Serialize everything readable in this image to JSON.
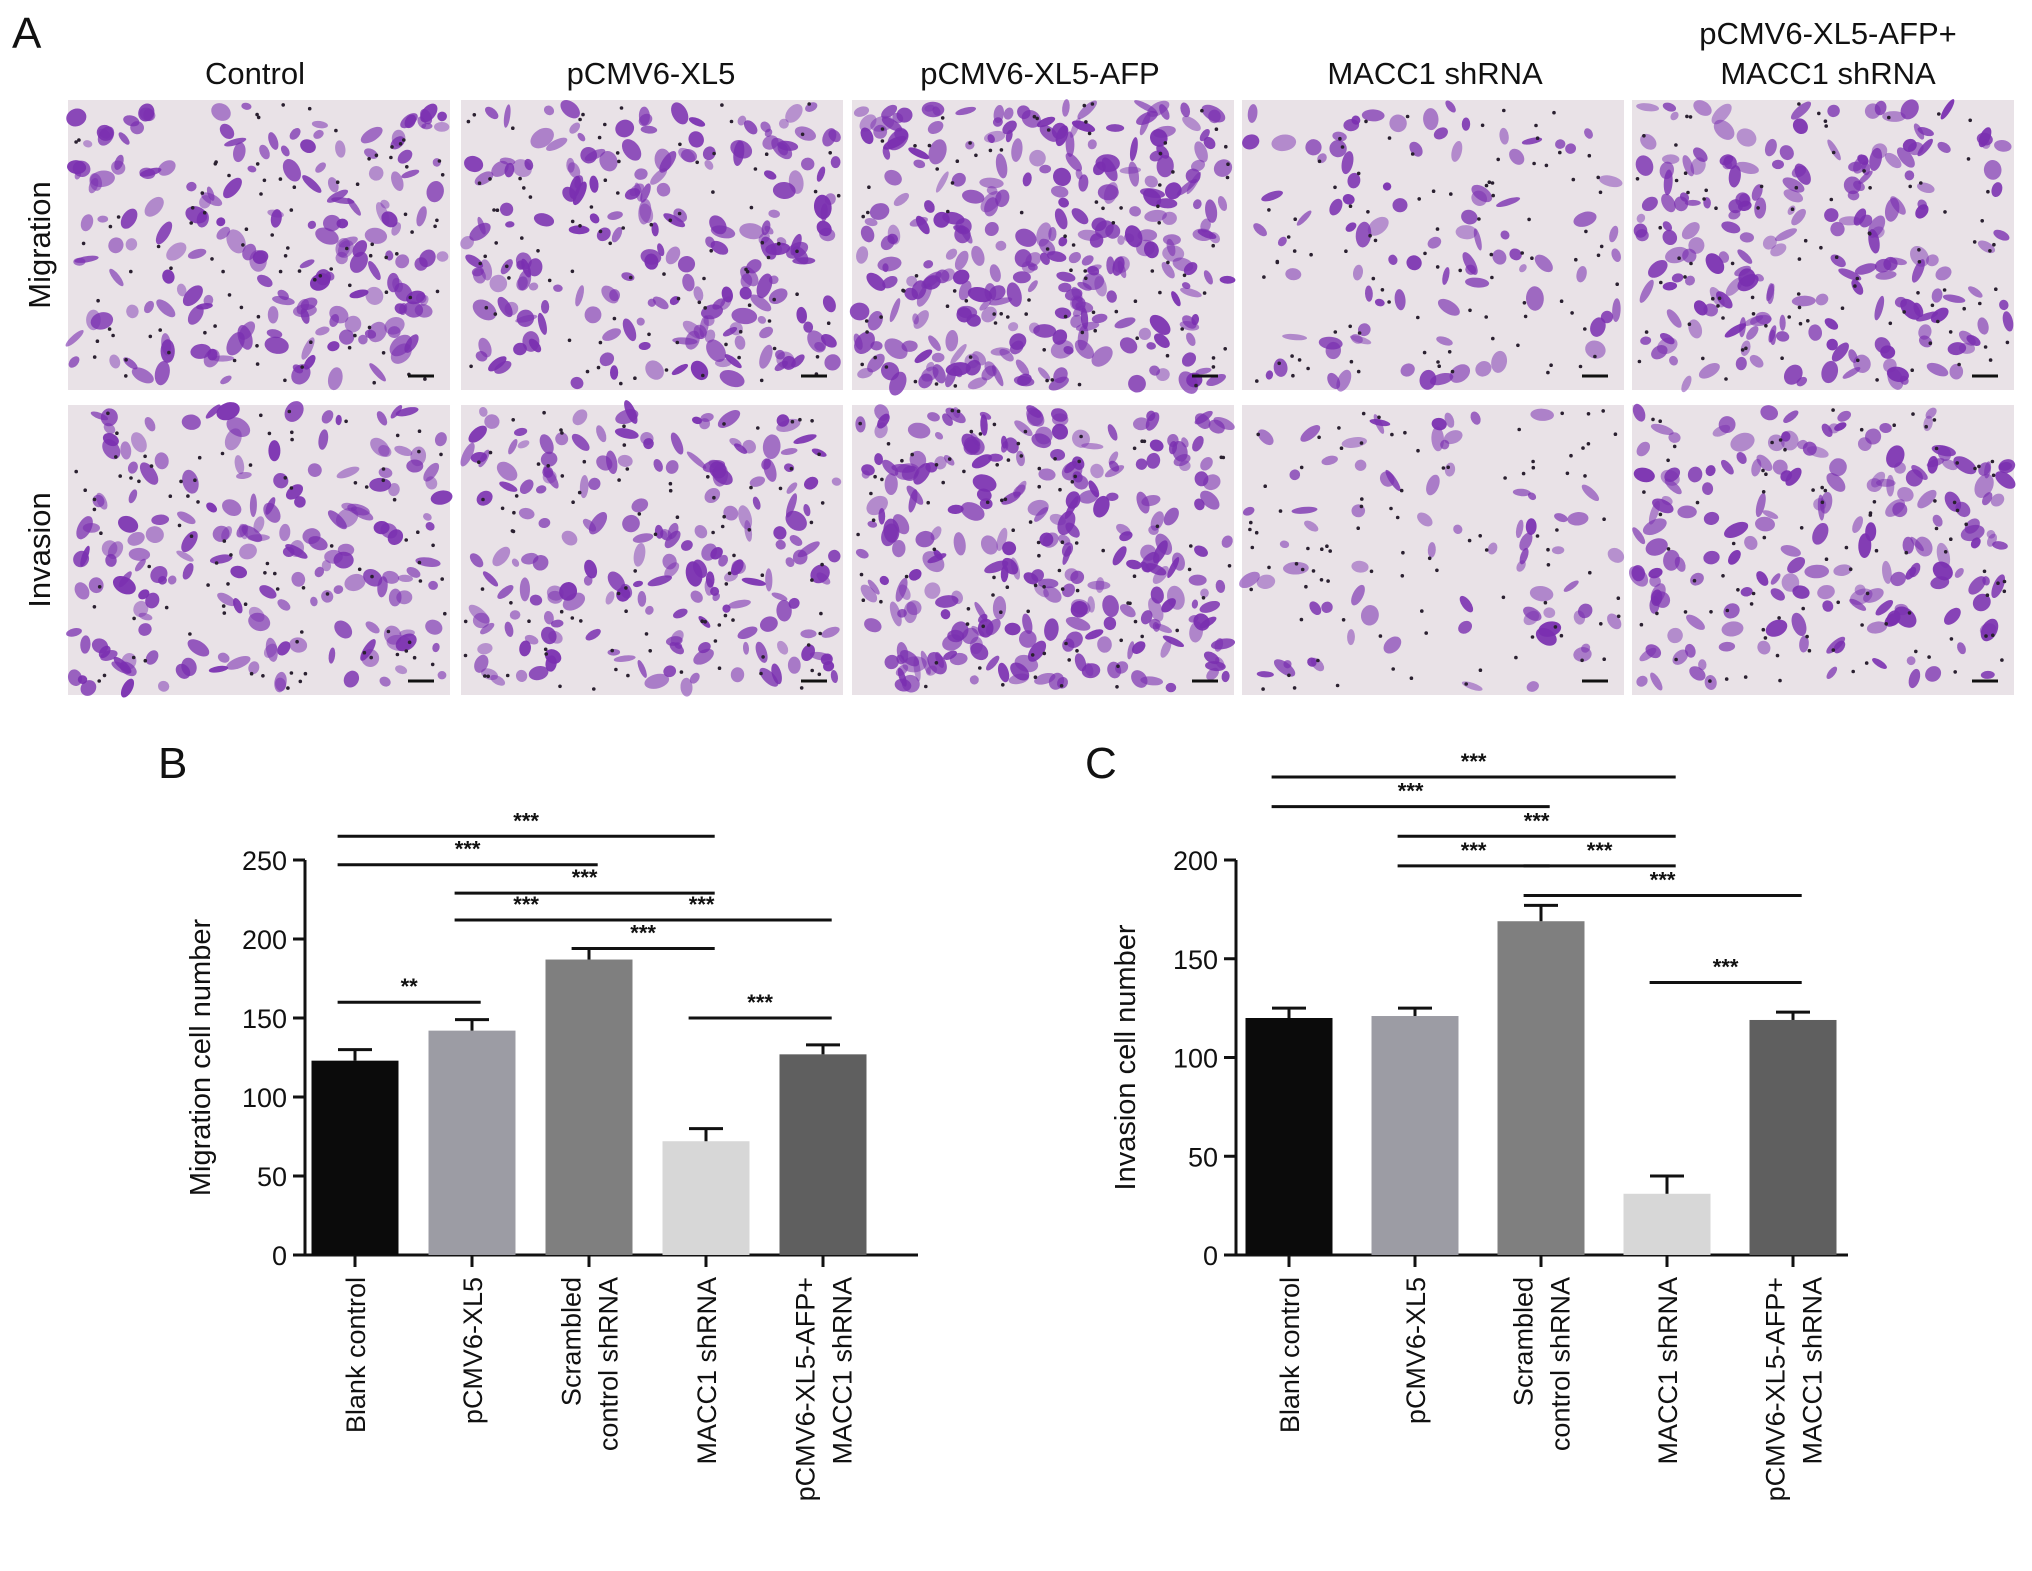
{
  "panel_labels": [
    "A",
    "B",
    "C"
  ],
  "panel_a": {
    "columns": [
      [
        "Control"
      ],
      [
        "pCMV6-XL5"
      ],
      [
        "pCMV6-XL5-AFP"
      ],
      [
        "MACC1 shRNA"
      ],
      [
        "pCMV6-XL5-AFP+",
        "MACC1 shRNA"
      ]
    ],
    "rows": [
      "Migration",
      "Invasion"
    ],
    "density": [
      [
        0.55,
        0.62,
        0.95,
        0.18,
        0.6
      ],
      [
        0.52,
        0.58,
        0.85,
        0.12,
        0.52
      ]
    ]
  },
  "colors": {
    "bars": [
      "#0b0b0b",
      "#9c9ca4",
      "#7f7f7f",
      "#d7d7d7",
      "#5f5f5f"
    ],
    "micro_bg": "#e9e2e7",
    "cell": "#7a2fb0"
  },
  "chart_data": [
    {
      "type": "bar",
      "panel": "B",
      "categories": [
        [
          "Blank control"
        ],
        [
          "pCMV6-XL5"
        ],
        [
          "Scrambled",
          "control shRNA"
        ],
        [
          "MACC1 shRNA"
        ],
        [
          "pCMV6-XL5-AFP+",
          "MACC1 shRNA"
        ]
      ],
      "values": [
        123,
        142,
        187,
        72,
        127
      ],
      "errors": [
        7,
        7,
        7,
        8,
        6
      ],
      "ylabel": "Migration cell number",
      "ylim": [
        0,
        250
      ],
      "yticks": [
        0,
        50,
        100,
        150,
        200,
        250
      ],
      "comparisons": [
        {
          "from": 0,
          "to": 3,
          "label": "***",
          "level": 265
        },
        {
          "from": 0,
          "to": 2,
          "label": "***",
          "level": 247
        },
        {
          "from": 1,
          "to": 3,
          "label": "***",
          "level": 229
        },
        {
          "from": 1,
          "to": 2,
          "label": "***",
          "level": 212
        },
        {
          "from": 2,
          "to": 4,
          "label": "***",
          "level": 212
        },
        {
          "from": 2,
          "to": 3,
          "label": "***",
          "level": 194
        },
        {
          "from": 0,
          "to": 1,
          "label": "**",
          "level": 160
        },
        {
          "from": 3,
          "to": 4,
          "label": "***",
          "level": 150
        }
      ]
    },
    {
      "type": "bar",
      "panel": "C",
      "categories": [
        [
          "Blank control"
        ],
        [
          "pCMV6-XL5"
        ],
        [
          "Scrambled",
          "control shRNA"
        ],
        [
          "MACC1 shRNA"
        ],
        [
          "pCMV6-XL5-AFP+",
          "MACC1 shRNA"
        ]
      ],
      "values": [
        120,
        121,
        169,
        31,
        119
      ],
      "errors": [
        5,
        4,
        8,
        9,
        4
      ],
      "ylabel": "Invasion cell number",
      "ylim": [
        0,
        200
      ],
      "yticks": [
        0,
        50,
        100,
        150,
        200
      ],
      "comparisons": [
        {
          "from": 0,
          "to": 3,
          "label": "***",
          "level": 242
        },
        {
          "from": 0,
          "to": 2,
          "label": "***",
          "level": 227
        },
        {
          "from": 1,
          "to": 3,
          "label": "***",
          "level": 212
        },
        {
          "from": 1,
          "to": 2,
          "label": "***",
          "level": 197
        },
        {
          "from": 2,
          "to": 3,
          "label": "***",
          "level": 197
        },
        {
          "from": 2,
          "to": 4,
          "label": "***",
          "level": 182
        },
        {
          "from": 3,
          "to": 4,
          "label": "***",
          "level": 138
        }
      ]
    }
  ]
}
